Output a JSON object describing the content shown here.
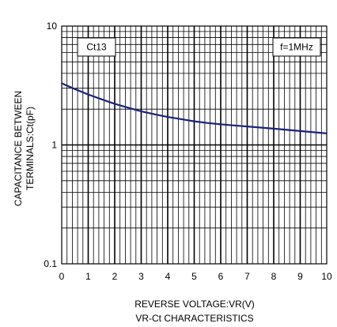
{
  "chart_data": {
    "type": "line",
    "title": "VR-Ct CHARACTERISTICS",
    "xlabel": "REVERSE VOLTAGE:VR(V)",
    "ylabel_lines": [
      "CAPACITANCE BETWEEN",
      "TERMINALS:Ct(pF)"
    ],
    "xlim": [
      0,
      10
    ],
    "ylim": [
      0.1,
      10
    ],
    "yscale": "log",
    "x_ticks": [
      "0",
      "1",
      "2",
      "3",
      "4",
      "5",
      "6",
      "7",
      "8",
      "9",
      "10"
    ],
    "y_ticks": [
      {
        "value": 0.1,
        "label": "0.1"
      },
      {
        "value": 1,
        "label": "1"
      },
      {
        "value": 10,
        "label": "10"
      }
    ],
    "grid": true,
    "annotations": {
      "part": "Ct13",
      "condition": "f=1MHz"
    },
    "series": [
      {
        "color": "#1a237e",
        "x": [
          0,
          0.5,
          1,
          1.5,
          2,
          2.5,
          3,
          3.5,
          4,
          4.5,
          5,
          5.5,
          6,
          6.5,
          7,
          7.5,
          8,
          8.5,
          9,
          9.5,
          10
        ],
        "y": [
          3.3,
          2.95,
          2.66,
          2.42,
          2.22,
          2.06,
          1.92,
          1.81,
          1.72,
          1.65,
          1.58,
          1.53,
          1.49,
          1.46,
          1.43,
          1.4,
          1.37,
          1.34,
          1.31,
          1.28,
          1.25
        ]
      }
    ]
  }
}
